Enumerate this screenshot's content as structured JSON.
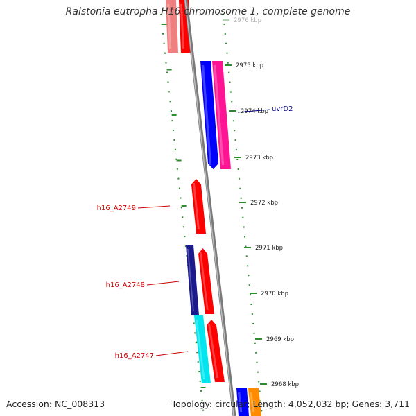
{
  "title": "Ralstonia eutropha H16 chromosome 1, complete genome",
  "footer": {
    "accession": "Accession: NC_008313",
    "topology": "Topology: circular; Length: 4,052,032 bp; Genes: 3,711"
  },
  "colors": {
    "backbone": "#8a8a8a",
    "ticks": "#2e8b2e",
    "gene_label_red": "#cc0000",
    "gene_label_blue": "#000080"
  },
  "scale_ticks": [
    {
      "label": "2976 kbp",
      "faded": true
    },
    {
      "label": "2975 kbp"
    },
    {
      "label": "2974 kbp"
    },
    {
      "label": "2973 kbp"
    },
    {
      "label": "2972 kbp"
    },
    {
      "label": "2971 kbp"
    },
    {
      "label": "2970 kbp"
    },
    {
      "label": "2969 kbp"
    },
    {
      "label": "2968 kbp"
    }
  ],
  "gene_labels": [
    {
      "text": "uvrD2",
      "color": "#000080"
    },
    {
      "text": "h16_A2749",
      "color": "#cc0000"
    },
    {
      "text": "h16_A2748",
      "color": "#cc0000"
    },
    {
      "text": "h16_A2747",
      "color": "#cc0000"
    }
  ],
  "features": [
    {
      "name": "feature-pink-top",
      "color": "#f08080"
    },
    {
      "name": "feature-red-top",
      "color": "#ff0000"
    },
    {
      "name": "feature-blue-uvrd2",
      "color": "#0000ff"
    },
    {
      "name": "feature-magenta-uvrd2",
      "color": "#ff1493"
    },
    {
      "name": "feature-red-h16-a2749",
      "color": "#ff0000"
    },
    {
      "name": "feature-navy-h16-a2748",
      "color": "#1a1a8c"
    },
    {
      "name": "feature-red-h16-a2748",
      "color": "#ff0000"
    },
    {
      "name": "feature-cyan-h16-a2747",
      "color": "#00e5ee"
    },
    {
      "name": "feature-red-h16-a2747",
      "color": "#ff0000"
    },
    {
      "name": "feature-blue-bottom",
      "color": "#0000ff"
    },
    {
      "name": "feature-orange-bottom",
      "color": "#ff8c00"
    }
  ]
}
